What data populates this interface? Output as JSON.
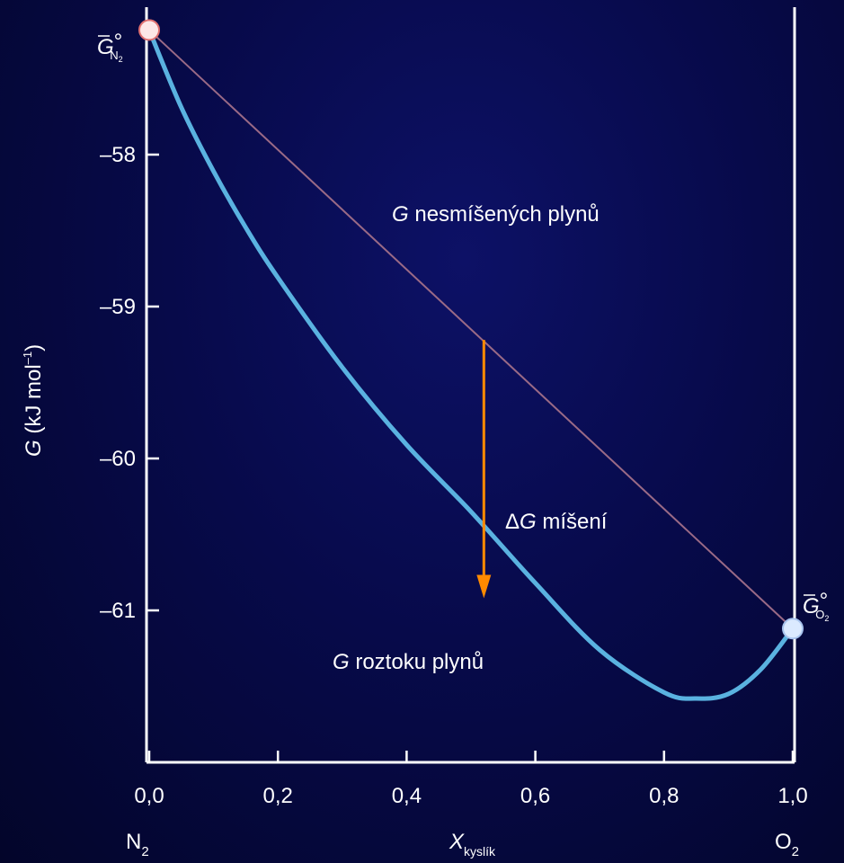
{
  "chart_data": {
    "type": "line",
    "xlabel": "X",
    "xlabel_sub": "kyslík",
    "ylabel": "G (kJ mol",
    "ylabel_sup": "–1",
    "ylabel_close": ")",
    "xlim": [
      0.0,
      1.0
    ],
    "ylim": [
      -62.0,
      -57.1
    ],
    "x_ticks": [
      0.0,
      0.2,
      0.4,
      0.6,
      0.8,
      1.0
    ],
    "x_tick_labels": [
      "0,0",
      "0,2",
      "0,4",
      "0,6",
      "0,8",
      "1,0"
    ],
    "y_ticks": [
      -58,
      -59,
      -60,
      -61
    ],
    "y_tick_labels": [
      "–58",
      "–59",
      "–60",
      "–61"
    ],
    "x_end_labels": {
      "left": {
        "main": "N",
        "sub": "2"
      },
      "right": {
        "main": "O",
        "sub": "2"
      }
    },
    "series": [
      {
        "key": "unmixed",
        "name": "G nesmíšených plynů",
        "label_italic": "G",
        "label_rest": " nesmíšených plynů",
        "color": "#9a6a86",
        "x": [
          0.0,
          1.0
        ],
        "y": [
          -57.18,
          -61.12
        ]
      },
      {
        "key": "solution",
        "name": "G roztoku plynů",
        "label_italic": "G",
        "label_rest": " roztoku plynů",
        "color": "#5ab2e0",
        "x": [
          0.0,
          0.05,
          0.1,
          0.15,
          0.2,
          0.3,
          0.4,
          0.5,
          0.6,
          0.7,
          0.8,
          0.85,
          0.9,
          0.95,
          1.0
        ],
        "y": [
          -57.18,
          -57.69,
          -58.11,
          -58.48,
          -58.81,
          -59.4,
          -59.91,
          -60.35,
          -60.82,
          -61.26,
          -61.54,
          -61.58,
          -61.55,
          -61.39,
          -61.12
        ]
      }
    ],
    "endpoints": [
      {
        "x": 0.0,
        "y": -57.18,
        "color": "#fde6e6",
        "stroke": "#e07070",
        "label_main": "G",
        "label_deg": "°",
        "label_sub": "N",
        "label_sub2": "2"
      },
      {
        "x": 1.0,
        "y": -61.12,
        "color": "#dbeaff",
        "stroke": "#a8c4ee",
        "label_main": "G",
        "label_deg": "°",
        "label_sub": "O",
        "label_sub2": "2"
      }
    ],
    "arrow": {
      "x": 0.52,
      "y_from": -59.22,
      "y_to": -60.92,
      "color": "#ff8a00",
      "label_delta": "Δ",
      "label_italic": "G",
      "label_rest": " míšení"
    },
    "grid": false
  }
}
